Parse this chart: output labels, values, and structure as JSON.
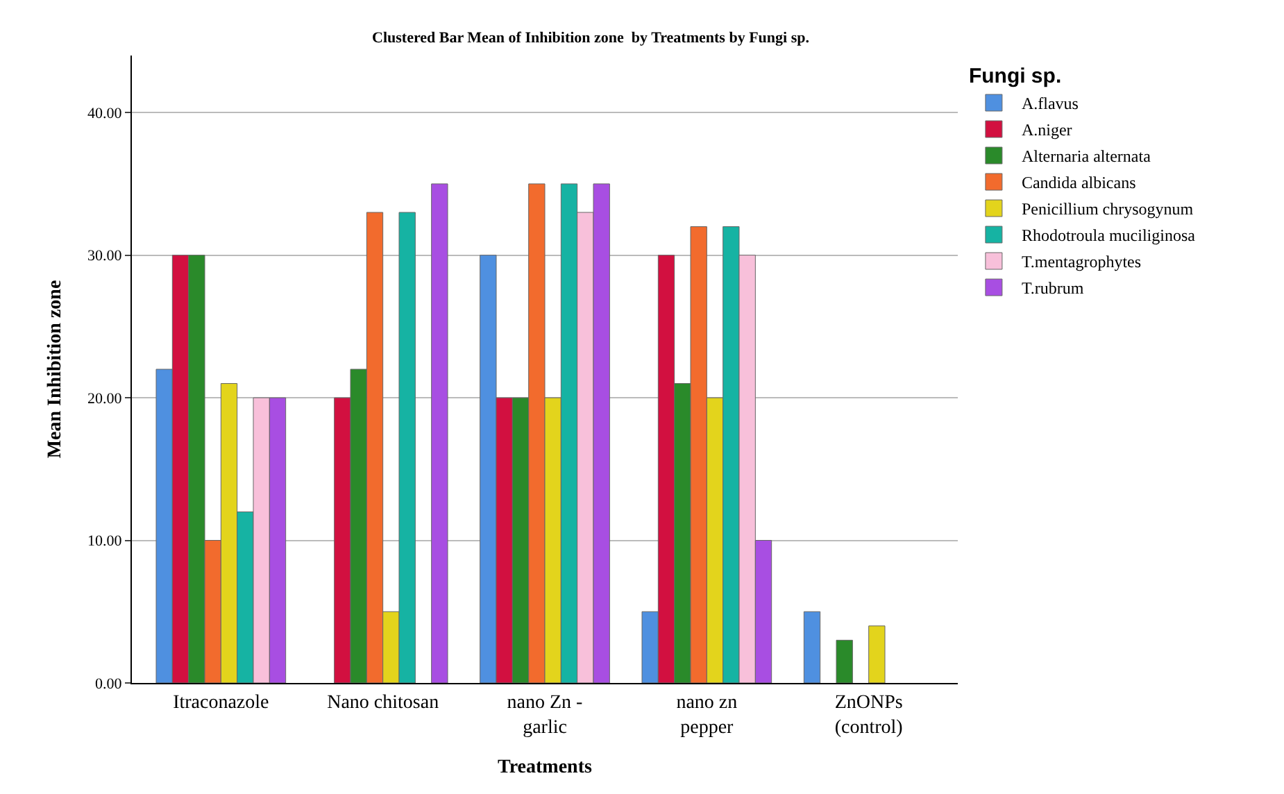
{
  "chart_data": {
    "type": "bar",
    "title": "Clustered Bar Mean of Inhibition zone  by Treatments by Fungi sp.",
    "xlabel": "Treatments",
    "ylabel": "Mean Inhibition zone",
    "legend_title": "Fungi sp.",
    "categories": [
      "Itraconazole",
      "Nano chitosan",
      "nano Zn -\ngarlic",
      "nano zn\npepper",
      "ZnONPs\n(control)"
    ],
    "series": [
      {
        "name": "A.flavus",
        "color": "#4f90e0",
        "values": [
          22,
          null,
          30,
          5,
          5
        ]
      },
      {
        "name": "A.niger",
        "color": "#d21040",
        "values": [
          30,
          20,
          20,
          30,
          null
        ]
      },
      {
        "name": "Alternaria alternata",
        "color": "#2a8a2a",
        "values": [
          30,
          22,
          20,
          21,
          3
        ]
      },
      {
        "name": "Candida albicans",
        "color": "#f26b2d",
        "values": [
          10,
          33,
          35,
          32,
          null
        ]
      },
      {
        "name": "Penicillium chrysogynum",
        "color": "#e3d41c",
        "values": [
          21,
          5,
          20,
          20,
          4
        ]
      },
      {
        "name": "Rhodotroula muciliginosa",
        "color": "#16b3a3",
        "values": [
          12,
          33,
          35,
          32,
          null
        ]
      },
      {
        "name": "T.mentagrophytes",
        "color": "#f8c0da",
        "values": [
          20,
          null,
          33,
          30,
          null
        ]
      },
      {
        "name": "T.rubrum",
        "color": "#a84ee2",
        "values": [
          20,
          35,
          35,
          10,
          null
        ]
      }
    ],
    "ylim": [
      0,
      44
    ],
    "yticks": [
      {
        "value": 0,
        "label": "0.00"
      },
      {
        "value": 10,
        "label": "10.00"
      },
      {
        "value": 20,
        "label": "20.00"
      },
      {
        "value": 30,
        "label": "30.00"
      },
      {
        "value": 40,
        "label": "40.00"
      }
    ],
    "grid": "y",
    "legend": "right"
  }
}
